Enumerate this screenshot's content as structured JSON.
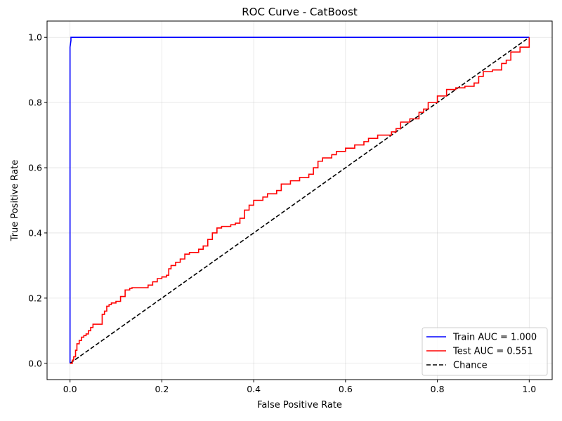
{
  "chart_data": {
    "type": "line",
    "title": "ROC Curve - CatBoost",
    "xlabel": "False Positive Rate",
    "ylabel": "True Positive Rate",
    "xlim": [
      -0.05,
      1.05
    ],
    "ylim": [
      -0.05,
      1.05
    ],
    "xticks": [
      "0.0",
      "0.2",
      "0.4",
      "0.6",
      "0.8",
      "1.0"
    ],
    "yticks": [
      "0.0",
      "0.2",
      "0.4",
      "0.6",
      "0.8",
      "1.0"
    ],
    "grid": true,
    "legend_position": "bottom-right",
    "series": [
      {
        "name": "Train AUC = 1.000",
        "color": "#0000ff",
        "dash": "solid",
        "x": [
          0,
          0,
          0.002,
          0.002,
          1
        ],
        "y": [
          0,
          0.97,
          0.99,
          1.0,
          1.0
        ]
      },
      {
        "name": "Test AUC = 0.551",
        "color": "#ff0000",
        "dash": "solid",
        "x": [
          0,
          0.005,
          0.008,
          0.012,
          0.015,
          0.02,
          0.025,
          0.03,
          0.035,
          0.04,
          0.045,
          0.05,
          0.055,
          0.06,
          0.07,
          0.075,
          0.08,
          0.085,
          0.09,
          0.1,
          0.11,
          0.12,
          0.13,
          0.135,
          0.14,
          0.16,
          0.17,
          0.18,
          0.19,
          0.2,
          0.21,
          0.215,
          0.22,
          0.23,
          0.24,
          0.25,
          0.26,
          0.28,
          0.29,
          0.3,
          0.31,
          0.32,
          0.33,
          0.35,
          0.36,
          0.37,
          0.38,
          0.39,
          0.4,
          0.42,
          0.43,
          0.45,
          0.46,
          0.48,
          0.5,
          0.52,
          0.53,
          0.54,
          0.55,
          0.57,
          0.58,
          0.6,
          0.62,
          0.64,
          0.65,
          0.67,
          0.7,
          0.71,
          0.72,
          0.74,
          0.76,
          0.77,
          0.78,
          0.8,
          0.82,
          0.84,
          0.86,
          0.88,
          0.89,
          0.9,
          0.92,
          0.94,
          0.95,
          0.96,
          0.98,
          1.0
        ],
        "y": [
          0,
          0.01,
          0.02,
          0.04,
          0.06,
          0.07,
          0.08,
          0.085,
          0.09,
          0.1,
          0.11,
          0.12,
          0.12,
          0.12,
          0.15,
          0.16,
          0.175,
          0.18,
          0.185,
          0.19,
          0.205,
          0.225,
          0.23,
          0.232,
          0.232,
          0.232,
          0.24,
          0.25,
          0.26,
          0.265,
          0.27,
          0.29,
          0.3,
          0.31,
          0.32,
          0.335,
          0.34,
          0.35,
          0.36,
          0.38,
          0.4,
          0.415,
          0.42,
          0.425,
          0.43,
          0.445,
          0.47,
          0.485,
          0.5,
          0.51,
          0.52,
          0.53,
          0.55,
          0.56,
          0.57,
          0.58,
          0.6,
          0.62,
          0.63,
          0.64,
          0.65,
          0.66,
          0.67,
          0.68,
          0.69,
          0.7,
          0.71,
          0.72,
          0.74,
          0.75,
          0.77,
          0.78,
          0.8,
          0.82,
          0.84,
          0.845,
          0.85,
          0.86,
          0.88,
          0.895,
          0.9,
          0.92,
          0.93,
          0.955,
          0.97,
          1.0
        ]
      },
      {
        "name": "Chance",
        "color": "#000000",
        "dash": "dashed",
        "x": [
          0,
          1
        ],
        "y": [
          0,
          1
        ]
      }
    ]
  }
}
